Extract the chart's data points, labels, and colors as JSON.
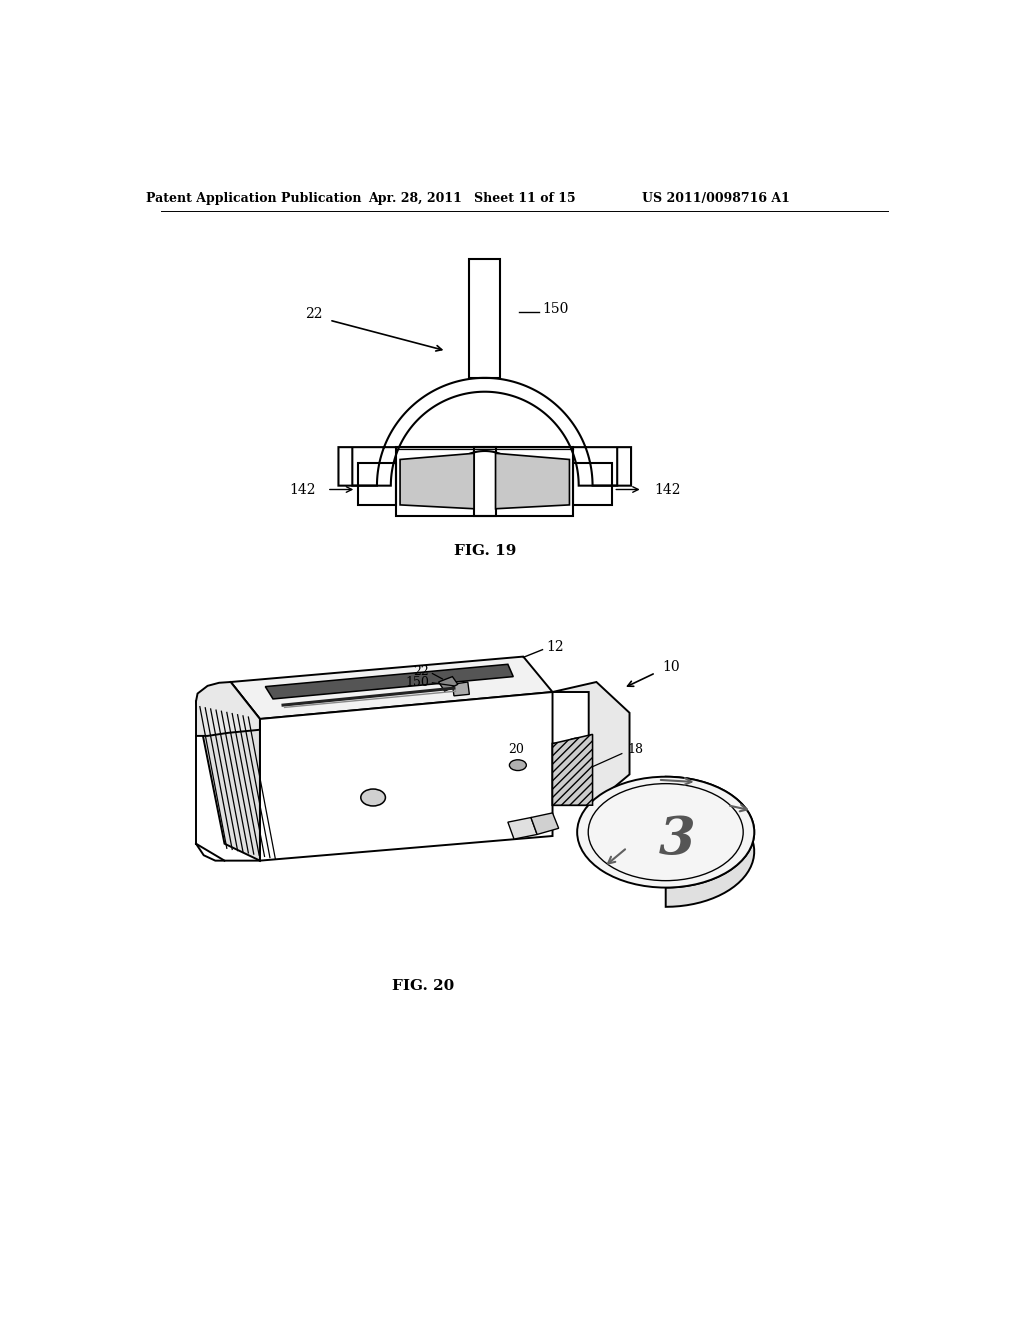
{
  "background_color": "#ffffff",
  "header_text": "Patent Application Publication",
  "header_date": "Apr. 28, 2011",
  "header_sheet": "Sheet 11 of 15",
  "header_patent": "US 2011/0098716 A1",
  "fig19_label": "FIG. 19",
  "fig20_label": "FIG. 20",
  "line_color": "#000000",
  "text_color": "#000000",
  "gray_light": "#e0e0e0",
  "gray_mid": "#b0b0b0",
  "gray_dark": "#808080"
}
